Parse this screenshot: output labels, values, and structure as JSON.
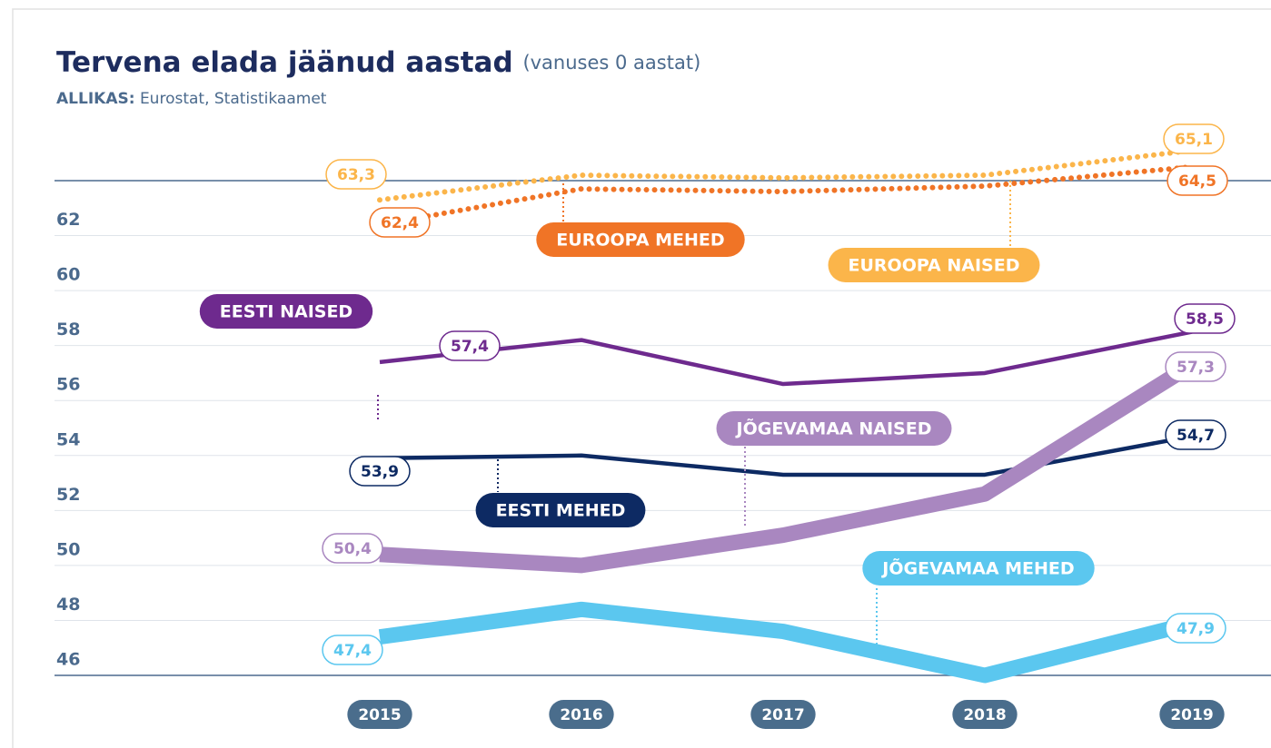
{
  "chart_data": {
    "type": "line",
    "title": "Tervena elada jäänud aastad",
    "title_note": "(vanuses 0 aastat)",
    "source_label": "ALLIKAS:",
    "source": "Eurostat, Statistikaamet",
    "categories": [
      "2015",
      "2016",
      "2017",
      "2018",
      "2019"
    ],
    "ylim": [
      46,
      64
    ],
    "yticks": [
      46,
      48,
      50,
      52,
      54,
      56,
      58,
      60,
      62
    ],
    "grid": true,
    "series": [
      {
        "name": "EUROOPA NAISED",
        "color": "#fbb54a",
        "style": "dotted",
        "values": [
          63.3,
          64.2,
          64.1,
          64.2,
          65.1
        ],
        "value_labels": [
          "63,3",
          null,
          null,
          null,
          "65,1"
        ]
      },
      {
        "name": "EUROOPA MEHED",
        "color": "#f07426",
        "style": "dotted",
        "values": [
          62.4,
          63.7,
          63.6,
          63.8,
          64.5
        ],
        "value_labels": [
          "62,4",
          null,
          null,
          null,
          "64,5"
        ]
      },
      {
        "name": "EESTI NAISED",
        "color": "#6e2a8e",
        "style": "solid",
        "values": [
          57.4,
          58.2,
          56.6,
          57.0,
          58.5
        ],
        "value_labels": [
          "57,4",
          null,
          null,
          null,
          "58,5"
        ]
      },
      {
        "name": "EESTI MEHED",
        "color": "#0d2a63",
        "style": "solid",
        "values": [
          53.9,
          54.0,
          53.3,
          53.3,
          54.7
        ],
        "value_labels": [
          "53,9",
          null,
          null,
          null,
          "54,7"
        ]
      },
      {
        "name": "JÕGEVAMAA NAISED",
        "color": "#a987c0",
        "style": "thick",
        "values": [
          50.4,
          50.0,
          51.1,
          52.6,
          57.3
        ],
        "value_labels": [
          "50,4",
          null,
          null,
          null,
          "57,3"
        ]
      },
      {
        "name": "JÕGEVAMAA MEHED",
        "color": "#5bc7ef",
        "style": "thick",
        "values": [
          47.4,
          48.4,
          47.6,
          46.0,
          47.9
        ],
        "value_labels": [
          "47,4",
          null,
          null,
          null,
          "47,9"
        ]
      }
    ]
  }
}
